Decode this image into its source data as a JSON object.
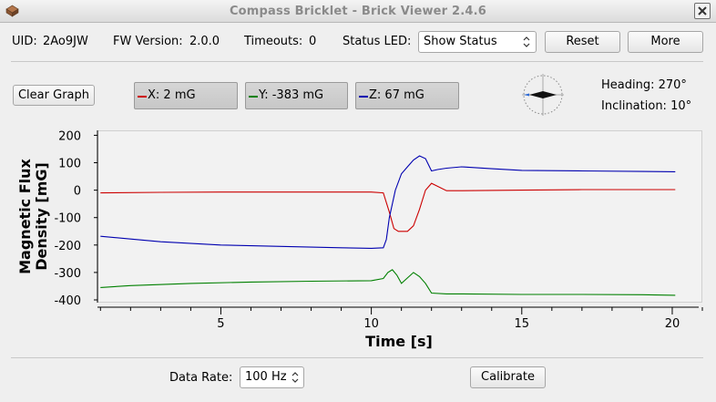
{
  "window": {
    "title": "Compass Bricklet - Brick Viewer 2.4.6",
    "app_icon": "brick-icon",
    "close_icon": "close-icon"
  },
  "info": {
    "uid_label": "UID:",
    "uid": "2Ao9JW",
    "fw_label": "FW Version:",
    "fw": "2.0.0",
    "timeouts_label": "Timeouts:",
    "timeouts": "0",
    "status_led_label": "Status LED:",
    "status_led_value": "Show Status",
    "reset_label": "Reset",
    "more_label": "More"
  },
  "controls": {
    "clear_graph_label": "Clear Graph",
    "legend": [
      {
        "text": "X: 2 mG",
        "color": "#cc0000"
      },
      {
        "text": "Y: -383 mG",
        "color": "#008000"
      },
      {
        "text": "Z: 67 mG",
        "color": "#0000b0"
      }
    ],
    "heading": "Heading: 270°",
    "inclination": "Inclination: 10°",
    "compass_icon": "compass-icon"
  },
  "bottom": {
    "data_rate_label": "Data Rate:",
    "data_rate_value": "100 Hz",
    "calibrate_label": "Calibrate"
  },
  "chart_data": {
    "type": "line",
    "xlabel": "Time [s]",
    "ylabel": "Magnetic Flux Density [mG]",
    "xlim": [
      0.9,
      21.0
    ],
    "ylim": [
      -410,
      218
    ],
    "xticks": [
      5,
      10,
      15,
      20
    ],
    "yticks": [
      200,
      100,
      0,
      -100,
      -200,
      -300,
      -400
    ],
    "grid": false,
    "series": [
      {
        "name": "X",
        "color": "#cc0000",
        "x": [
          1,
          3,
          5,
          8,
          10,
          10.4,
          10.6,
          10.75,
          10.9,
          11.2,
          11.4,
          11.6,
          11.8,
          12.0,
          12.5,
          13,
          15,
          17,
          19,
          20.1
        ],
        "y": [
          -10,
          -8,
          -7,
          -7,
          -7,
          -10,
          -80,
          -140,
          -150,
          -150,
          -130,
          -70,
          0,
          25,
          -2,
          -2,
          0,
          2,
          2,
          2
        ]
      },
      {
        "name": "Y",
        "color": "#008000",
        "x": [
          1,
          2,
          4,
          6,
          8,
          10,
          10.4,
          10.55,
          10.7,
          10.85,
          11.0,
          11.2,
          11.4,
          11.6,
          11.8,
          12.0,
          12.5,
          13,
          15,
          17,
          19,
          20.1
        ],
        "y": [
          -355,
          -348,
          -340,
          -335,
          -332,
          -330,
          -322,
          -300,
          -290,
          -310,
          -340,
          -320,
          -300,
          -315,
          -340,
          -375,
          -378,
          -378,
          -380,
          -380,
          -381,
          -383
        ]
      },
      {
        "name": "Z",
        "color": "#0000b0",
        "x": [
          1,
          2,
          3,
          5,
          7,
          9,
          10,
          10.4,
          10.5,
          10.6,
          10.8,
          11.0,
          11.2,
          11.4,
          11.6,
          11.8,
          12.0,
          12.2,
          12.5,
          13,
          14,
          15,
          17,
          19,
          20.1
        ],
        "y": [
          -168,
          -178,
          -188,
          -200,
          -205,
          -210,
          -212,
          -210,
          -180,
          -100,
          0,
          60,
          85,
          110,
          125,
          115,
          70,
          75,
          80,
          85,
          78,
          72,
          70,
          68,
          67
        ]
      }
    ]
  }
}
